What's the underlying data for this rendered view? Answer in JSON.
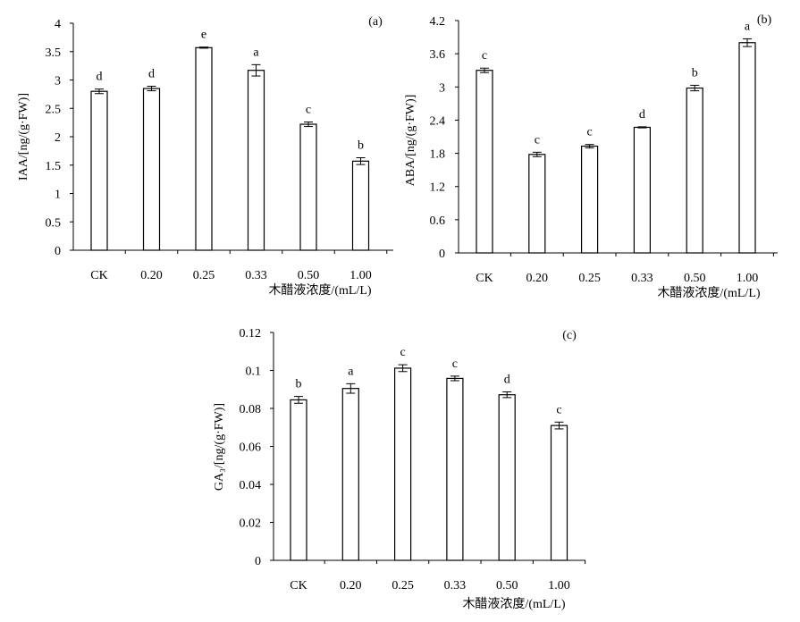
{
  "chart_data": [
    {
      "type": "bar",
      "panel_label": "(a)",
      "categories": [
        "CK",
        "0.20",
        "0.25",
        "0.33",
        "0.50",
        "1.00"
      ],
      "values": [
        2.8,
        2.85,
        3.57,
        3.17,
        2.22,
        1.57
      ],
      "errors": [
        0.04,
        0.04,
        0.01,
        0.1,
        0.04,
        0.06
      ],
      "significance": [
        "d",
        "d",
        "e",
        "a",
        "c",
        "b"
      ],
      "ylabel": "IAA/[ng/(g·FW)]",
      "xlabel": "木醋液浓度/(mL/L)",
      "ylim": [
        0,
        4
      ],
      "yticks": [
        "0",
        "0.5",
        "1",
        "1.5",
        "2",
        "2.5",
        "3",
        "3.5",
        "4"
      ],
      "grid": false
    },
    {
      "type": "bar",
      "panel_label": "(b)",
      "categories": [
        "CK",
        "0.20",
        "0.25",
        "0.33",
        "0.50",
        "1.00"
      ],
      "values": [
        3.3,
        1.78,
        1.93,
        2.27,
        2.98,
        3.8
      ],
      "errors": [
        0.04,
        0.04,
        0.03,
        0.01,
        0.05,
        0.07
      ],
      "significance": [
        "c",
        "c",
        "c",
        "d",
        "b",
        "a"
      ],
      "ylabel": "ABA/[ng/(g·FW)]",
      "xlabel": "木醋液浓度/(mL/L)",
      "ylim": [
        0,
        4.2
      ],
      "yticks": [
        "0",
        "0.6",
        "1.2",
        "1.8",
        "2.4",
        "3",
        "3.6",
        "4.2"
      ],
      "grid": false
    },
    {
      "type": "bar",
      "panel_label": "(c)",
      "categories": [
        "CK",
        "0.20",
        "0.25",
        "0.33",
        "0.50",
        "1.00"
      ],
      "values": [
        0.0845,
        0.0905,
        0.1012,
        0.0958,
        0.0872,
        0.071
      ],
      "errors": [
        0.0018,
        0.0025,
        0.0018,
        0.0012,
        0.0015,
        0.0018
      ],
      "significance": [
        "b",
        "a",
        "c",
        "c",
        "d",
        "c"
      ],
      "ylabel": "GA₃/[ng/(g·FW)]",
      "xlabel": "木醋液浓度/(mL/L)",
      "ylim": [
        0,
        0.12
      ],
      "yticks": [
        "0",
        "0.02",
        "0.04",
        "0.06",
        "0.08",
        "0.1",
        "0.12"
      ],
      "grid": false
    }
  ]
}
